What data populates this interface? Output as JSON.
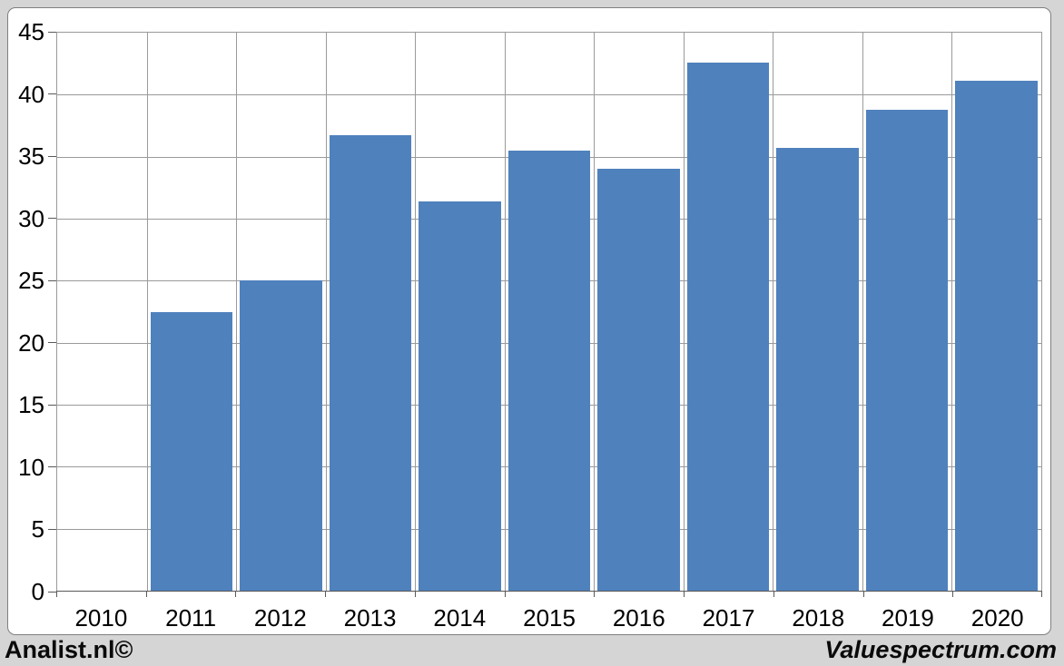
{
  "chart_data": {
    "type": "bar",
    "title": "",
    "xlabel": "",
    "ylabel": "",
    "categories": [
      "2010",
      "2011",
      "2012",
      "2013",
      "2014",
      "2015",
      "2016",
      "2017",
      "2018",
      "2019",
      "2020"
    ],
    "values": [
      0,
      22.5,
      25.0,
      36.7,
      31.4,
      35.5,
      34.0,
      42.6,
      35.7,
      38.8,
      41.1
    ],
    "ylim": [
      0,
      45
    ],
    "y_tick_step": 5,
    "y_tick_labels": [
      "0",
      "5",
      "10",
      "15",
      "20",
      "25",
      "30",
      "35",
      "40",
      "45"
    ],
    "grid": "both",
    "legend_position": "none",
    "bar_color": "#4f81bd"
  },
  "footer": {
    "left_brand": "Analist.nl©",
    "right_brand": "Valuespectrum.com"
  },
  "colors": {
    "background": "#d5d5d5",
    "plot_background": "#ffffff",
    "gridline": "#9a9a9a",
    "axis": "#595959",
    "chart_border": "#7f7f7f",
    "bar": "#4f81bd",
    "text": "#000000"
  }
}
